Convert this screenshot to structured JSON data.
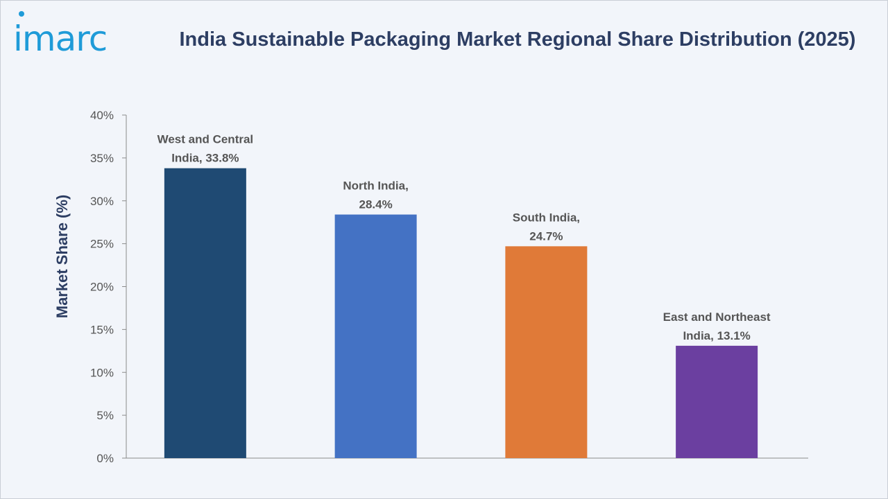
{
  "brand": {
    "logo_text": "imarc"
  },
  "chart_data": {
    "type": "bar",
    "title": "India Sustainable Packaging Market Regional Share Distribution (2025)",
    "ylabel": "Market Share (%)",
    "xlabel": "",
    "ylim": [
      0,
      40
    ],
    "y_ticks": [
      0,
      5,
      10,
      15,
      20,
      25,
      30,
      35,
      40
    ],
    "y_tick_labels": [
      "0%",
      "5%",
      "10%",
      "15%",
      "20%",
      "25%",
      "30%",
      "35%",
      "40%"
    ],
    "categories": [
      "West and Central India",
      "North India",
      "South India",
      "East and Northeast India"
    ],
    "values": [
      33.8,
      28.4,
      24.7,
      13.1
    ],
    "data_labels": [
      [
        "West and Central",
        "India, 33.8%"
      ],
      [
        "North India,",
        "28.4%"
      ],
      [
        "South India,",
        "24.7%"
      ],
      [
        "East and Northeast",
        "India, 13.1%"
      ]
    ],
    "colors": [
      "#1f4a73",
      "#4472c4",
      "#e07a38",
      "#6b3fa0"
    ],
    "grid": false,
    "legend": "none"
  }
}
